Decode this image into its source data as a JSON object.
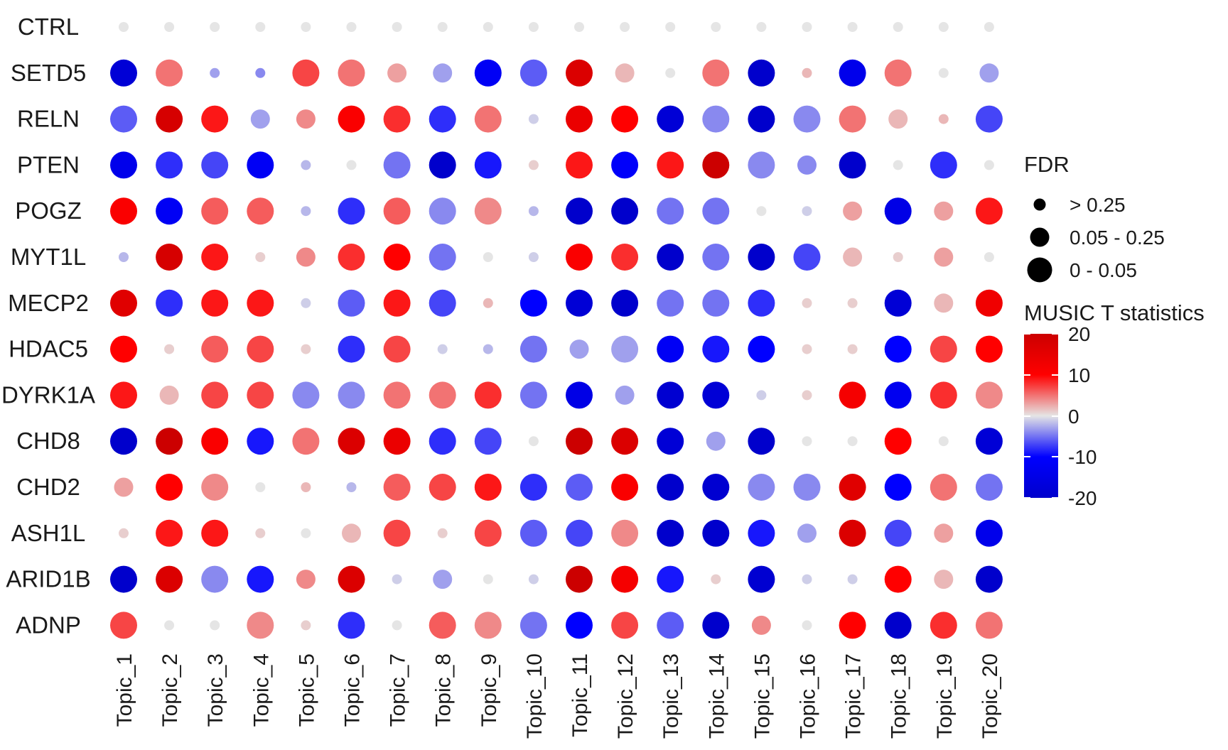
{
  "chart_data": {
    "type": "dotplot",
    "rows": [
      "CTRL",
      "SETD5",
      "RELN",
      "PTEN",
      "POGZ",
      "MYT1L",
      "MECP2",
      "HDAC5",
      "DYRK1A",
      "CHD8",
      "CHD2",
      "ASH1L",
      "ARID1B",
      "ADNP"
    ],
    "columns": [
      "Topic_1",
      "Topic_2",
      "Topic_3",
      "Topic_4",
      "Topic_5",
      "Topic_6",
      "Topic_7",
      "Topic_8",
      "Topic_9",
      "Topic_10",
      "Topic_11",
      "Topic_12",
      "Topic_13",
      "Topic_14",
      "Topic_15",
      "Topic_16",
      "Topic_17",
      "Topic_18",
      "Topic_19",
      "Topic_20"
    ],
    "tstat": [
      [
        0,
        0,
        0,
        0,
        0,
        0,
        0,
        0,
        0,
        0,
        0,
        0,
        0,
        0,
        0,
        0,
        0,
        0,
        0,
        0
      ],
      [
        -18,
        5,
        -3,
        -4,
        7,
        5,
        3,
        -3,
        -12,
        -6,
        17,
        2,
        0,
        5,
        -20,
        2,
        -14,
        5,
        0,
        -3
      ],
      [
        -6,
        18,
        9,
        -3,
        4,
        11,
        8,
        -8,
        5,
        -1,
        14,
        10,
        -18,
        -4,
        -20,
        -4,
        5,
        2,
        2,
        -7
      ],
      [
        -14,
        -8,
        -7,
        -12,
        -2,
        0,
        -5,
        -20,
        -9,
        1,
        9,
        -11,
        9,
        20,
        -4,
        -4,
        -20,
        0,
        -8,
        0
      ],
      [
        11,
        -12,
        6,
        6,
        -2,
        -8,
        6,
        -4,
        4,
        -2,
        -20,
        -20,
        -5,
        -5,
        0,
        -1,
        3,
        -15,
        3,
        9
      ],
      [
        -2,
        18,
        9,
        1,
        4,
        8,
        10,
        -5,
        0,
        -1,
        11,
        8,
        -20,
        -5,
        -20,
        -7,
        2,
        1,
        3,
        0
      ],
      [
        16,
        -8,
        9,
        9,
        -1,
        -6,
        9,
        -7,
        2,
        -10,
        -18,
        -20,
        -5,
        -5,
        -8,
        1,
        1,
        -18,
        2,
        13
      ],
      [
        10,
        1,
        6,
        7,
        1,
        -8,
        7,
        -1,
        -2,
        -5,
        -3,
        -3,
        -12,
        -9,
        -10,
        1,
        1,
        -10,
        7,
        10
      ],
      [
        9,
        2,
        7,
        7,
        -4,
        -4,
        5,
        5,
        8,
        -5,
        -15,
        -3,
        -19,
        -18,
        -1,
        1,
        12,
        -13,
        8,
        4
      ],
      [
        -20,
        20,
        11,
        -9,
        5,
        17,
        14,
        -8,
        -7,
        0,
        20,
        17,
        -18,
        -3,
        -20,
        0,
        0,
        10,
        0,
        -18
      ],
      [
        3,
        10,
        4,
        0,
        2,
        -2,
        6,
        7,
        9,
        -8,
        -6,
        11,
        -20,
        -19,
        -4,
        -4,
        16,
        -10,
        5,
        -5
      ],
      [
        1,
        9,
        9,
        1,
        0,
        2,
        7,
        1,
        7,
        -6,
        -7,
        4,
        -20,
        -20,
        -9,
        -3,
        17,
        -7,
        3,
        -14
      ],
      [
        -20,
        17,
        -4,
        -9,
        4,
        17,
        -1,
        -3,
        0,
        -1,
        20,
        12,
        -9,
        1,
        -19,
        -1,
        -1,
        10,
        2,
        -20
      ],
      [
        7,
        0,
        0,
        4,
        1,
        -8,
        0,
        6,
        4,
        -5,
        -10,
        7,
        -6,
        -20,
        4,
        0,
        10,
        -20,
        8,
        5
      ]
    ],
    "fdr_class": [
      [
        0,
        0,
        0,
        0,
        0,
        0,
        0,
        0,
        0,
        0,
        0,
        0,
        0,
        0,
        0,
        0,
        0,
        0,
        0,
        0
      ],
      [
        2,
        2,
        0,
        0,
        2,
        2,
        1,
        1,
        2,
        2,
        2,
        1,
        0,
        2,
        2,
        0,
        2,
        2,
        0,
        1
      ],
      [
        2,
        2,
        2,
        1,
        1,
        2,
        2,
        2,
        2,
        0,
        2,
        2,
        2,
        2,
        2,
        2,
        2,
        1,
        0,
        2
      ],
      [
        2,
        2,
        2,
        2,
        0,
        0,
        2,
        2,
        2,
        0,
        2,
        2,
        2,
        2,
        2,
        1,
        2,
        0,
        2,
        0
      ],
      [
        2,
        2,
        2,
        2,
        0,
        2,
        2,
        2,
        2,
        0,
        2,
        2,
        2,
        2,
        0,
        0,
        1,
        2,
        1,
        2
      ],
      [
        0,
        2,
        2,
        0,
        1,
        2,
        2,
        2,
        0,
        0,
        2,
        2,
        2,
        2,
        2,
        2,
        1,
        0,
        1,
        0
      ],
      [
        2,
        2,
        2,
        2,
        0,
        2,
        2,
        2,
        0,
        2,
        2,
        2,
        2,
        2,
        2,
        0,
        0,
        2,
        1,
        2
      ],
      [
        2,
        0,
        2,
        2,
        0,
        2,
        2,
        0,
        0,
        2,
        1,
        2,
        2,
        2,
        2,
        0,
        0,
        2,
        2,
        2
      ],
      [
        2,
        1,
        2,
        2,
        2,
        2,
        2,
        2,
        2,
        2,
        2,
        1,
        2,
        2,
        0,
        0,
        2,
        2,
        2,
        2
      ],
      [
        2,
        2,
        2,
        2,
        2,
        2,
        2,
        2,
        2,
        0,
        2,
        2,
        2,
        1,
        2,
        0,
        0,
        2,
        0,
        2
      ],
      [
        1,
        2,
        2,
        0,
        0,
        0,
        2,
        2,
        2,
        2,
        2,
        2,
        2,
        2,
        2,
        2,
        2,
        2,
        2,
        2
      ],
      [
        0,
        2,
        2,
        0,
        0,
        1,
        2,
        0,
        2,
        2,
        2,
        2,
        2,
        2,
        2,
        1,
        2,
        2,
        1,
        2
      ],
      [
        2,
        2,
        2,
        2,
        1,
        2,
        0,
        1,
        0,
        0,
        2,
        2,
        2,
        0,
        2,
        0,
        0,
        2,
        1,
        2
      ],
      [
        2,
        0,
        0,
        2,
        0,
        2,
        0,
        2,
        2,
        2,
        2,
        2,
        2,
        2,
        1,
        0,
        2,
        2,
        2,
        2
      ]
    ],
    "color_scale": {
      "min": -20,
      "max": 20,
      "low": "#0000CC",
      "mid_low": "#0000FF",
      "mid": "#E5E5E5",
      "mid_high": "#FF0000",
      "high": "#CC0000"
    }
  },
  "legend": {
    "size_title": "FDR",
    "size_items": [
      "> 0.25",
      "0.05 - 0.25",
      "0 - 0.05"
    ],
    "color_title": "MUSIC T statistics",
    "color_ticks": [
      "20",
      "10",
      "0",
      "-10",
      "-20"
    ]
  }
}
